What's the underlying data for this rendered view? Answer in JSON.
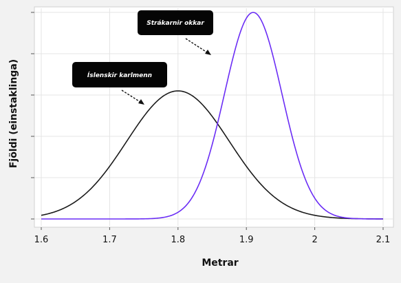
{
  "chart_data": {
    "type": "line",
    "xlabel": "Metrar",
    "ylabel": "Fjöldi (einstaklinga)",
    "xlim": [
      1.6,
      2.1
    ],
    "x_ticks": [
      "1.6",
      "1.7",
      "1.8",
      "1.9",
      "2",
      "2.1"
    ],
    "y_tick_count": 6,
    "y_tick_labels_visible": false,
    "grid": true,
    "series": [
      {
        "name": "Íslenskir karlmenn",
        "color": "#1a1a1a",
        "distribution": "normal",
        "mean": 1.8,
        "sd": 0.075,
        "peak": 0.62
      },
      {
        "name": "Strákarnir okkar",
        "color": "#6a2cf5",
        "distribution": "normal",
        "mean": 1.91,
        "sd": 0.042,
        "peak": 1.0
      }
    ],
    "annotations": [
      {
        "text": "Íslenskir karlmenn",
        "series": 0
      },
      {
        "text": "Strákarnir okkar",
        "series": 1
      }
    ]
  }
}
